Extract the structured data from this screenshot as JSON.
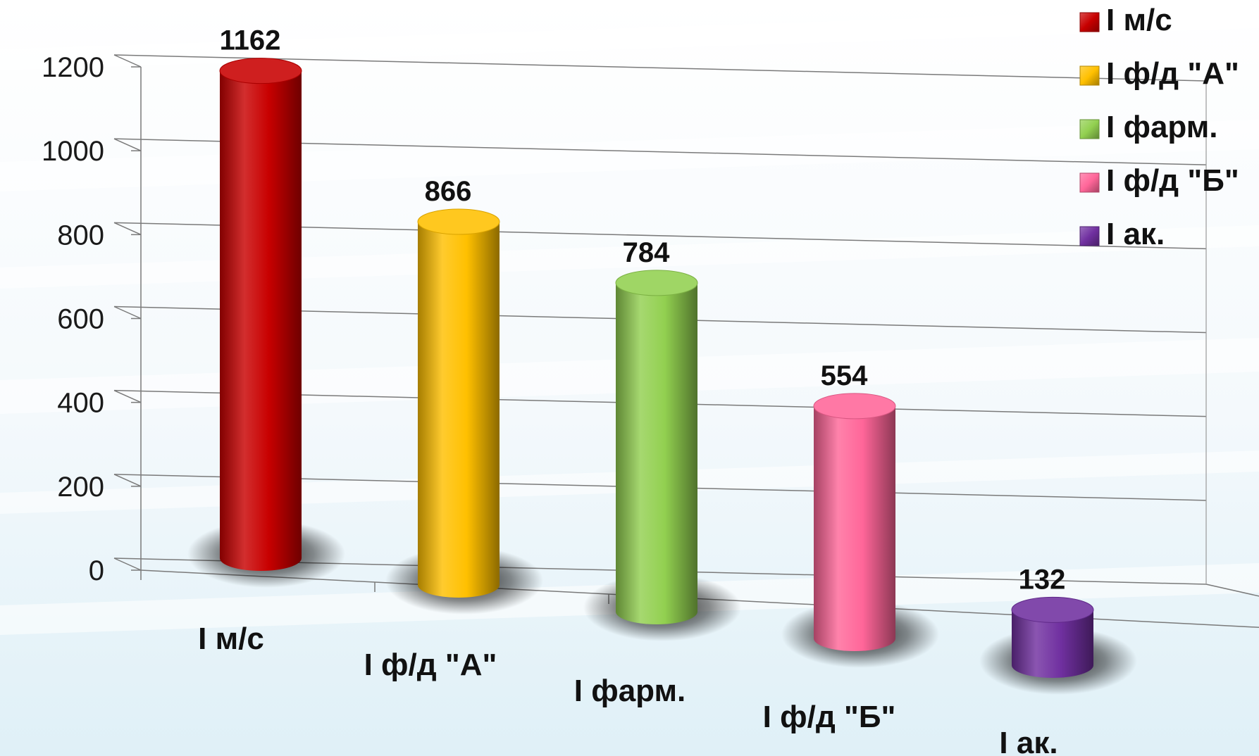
{
  "chart_data": {
    "type": "bar",
    "style": "3d-cylinder",
    "categories": [
      "I м/с",
      "I ф/д \"А\"",
      "I фарм.",
      "I ф/д \"Б\"",
      "I ак."
    ],
    "values": [
      1162,
      866,
      784,
      554,
      132
    ],
    "colors": [
      "#c80000",
      "#ffc000",
      "#92d050",
      "#ff6699",
      "#7030a0"
    ],
    "yticks": [
      0,
      200,
      400,
      600,
      800,
      1000,
      1200
    ],
    "ylim": [
      0,
      1200
    ],
    "title": "",
    "xlabel": "",
    "ylabel": "",
    "grid": true,
    "legend": {
      "position": "top-right",
      "entries": [
        "I м/с",
        "I ф/д \"А\"",
        "I фарм.",
        "I ф/д \"Б\"",
        "I ак."
      ]
    },
    "background": "#eaf5fa"
  }
}
